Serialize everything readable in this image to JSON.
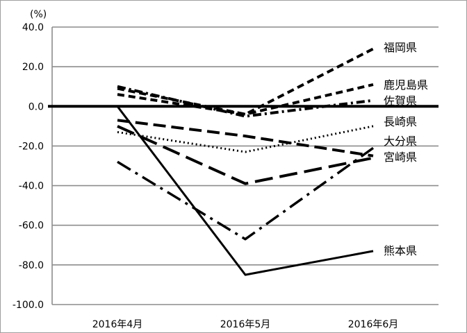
{
  "chart_data": {
    "type": "line",
    "unit_label": "(%)",
    "categories": [
      "2016年4月",
      "2016年5月",
      "2016年6月"
    ],
    "yticks": [
      "40.0",
      "20.0",
      "0.0",
      "-20.0",
      "-40.0",
      "-60.0",
      "-80.0",
      "-100.0"
    ],
    "ylim": [
      -100,
      40
    ],
    "grid": true,
    "series": [
      {
        "name": "福岡県",
        "values": [
          9,
          -4,
          29
        ],
        "style": "dash-short",
        "color": "#000000"
      },
      {
        "name": "鹿児島県",
        "values": [
          6,
          -4,
          11
        ],
        "style": "dash-short",
        "color": "#000000"
      },
      {
        "name": "佐賀県",
        "values": [
          10,
          -5,
          3
        ],
        "style": "dash-dot",
        "color": "#000000"
      },
      {
        "name": "長崎県",
        "values": [
          -13,
          -23,
          -10
        ],
        "style": "dot",
        "color": "#000000"
      },
      {
        "name": "大分県",
        "values": [
          -7,
          -15,
          -25
        ],
        "style": "dash-long",
        "color": "#000000"
      },
      {
        "name": "宮崎県",
        "values": [
          -10,
          -39,
          -26
        ],
        "style": "dash-xlong",
        "color": "#000000"
      },
      {
        "name": "熊本県",
        "values": [
          0,
          -85,
          -73
        ],
        "style": "solid",
        "color": "#000000"
      },
      {
        "name": "",
        "values": [
          -28,
          -67,
          -21
        ],
        "style": "dash-dot-long",
        "color": "#000000"
      }
    ],
    "label_positions": [
      "福岡県",
      "鹿児島県",
      "佐賀県",
      "長崎県",
      "大分県",
      "宮崎県",
      "熊本県"
    ]
  }
}
